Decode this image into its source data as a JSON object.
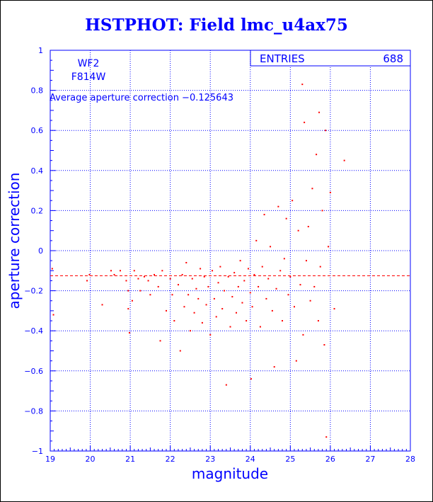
{
  "title": "HSTPHOT: Field lmc_u4ax75",
  "chart_data": {
    "type": "scatter",
    "title": "HSTPHOT: Field lmc_u4ax75",
    "xlabel": "magnitude",
    "ylabel": "aperture correction",
    "xlim": [
      19,
      28
    ],
    "ylim": [
      -1,
      1
    ],
    "xticks": [
      19,
      20,
      21,
      22,
      23,
      24,
      25,
      26,
      27,
      28
    ],
    "yticks": [
      -1,
      -0.8,
      -0.6,
      -0.4,
      -0.2,
      0,
      0.2,
      0.4,
      0.6,
      0.8,
      1
    ],
    "xtick_labels": [
      "19",
      "20",
      "21",
      "22",
      "23",
      "24",
      "25",
      "26",
      "27",
      "28"
    ],
    "ytick_labels": [
      "−1",
      "−0.8",
      "−0.6",
      "−0.4",
      "−0.2",
      "0",
      "0.2",
      "0.4",
      "0.6",
      "0.8",
      "1"
    ],
    "grid": true,
    "mean_line": -0.125643,
    "stats": {
      "label": "ENTRIES",
      "value": "688"
    },
    "annotations": {
      "camera": "WF2",
      "filter": "F814W",
      "average_text": "Average aperture correction −0.125643"
    },
    "colors": {
      "text": "#0000ff",
      "points": "#ff0000",
      "axes": "#0000ff",
      "mean_line": "#ff0000"
    },
    "series": [
      {
        "points": [
          [
            19.05,
            -0.09
          ],
          [
            19.08,
            -0.32
          ],
          [
            19.92,
            -0.15
          ],
          [
            19.98,
            -0.12
          ],
          [
            20.3,
            -0.27
          ],
          [
            20.52,
            -0.1
          ],
          [
            20.6,
            -0.12
          ],
          [
            20.75,
            -0.1
          ],
          [
            20.9,
            -0.15
          ],
          [
            20.95,
            -0.2
          ],
          [
            20.95,
            -0.29
          ],
          [
            20.98,
            -0.41
          ],
          [
            21.05,
            -0.25
          ],
          [
            21.1,
            -0.1
          ],
          [
            21.2,
            -0.14
          ],
          [
            21.25,
            -0.2
          ],
          [
            21.35,
            -0.13
          ],
          [
            21.45,
            -0.15
          ],
          [
            21.5,
            -0.22
          ],
          [
            21.6,
            -0.12
          ],
          [
            21.7,
            -0.18
          ],
          [
            21.75,
            -0.45
          ],
          [
            21.8,
            -0.1
          ],
          [
            21.9,
            -0.3
          ],
          [
            22.0,
            -0.14
          ],
          [
            22.05,
            -0.22
          ],
          [
            22.1,
            -0.35
          ],
          [
            22.2,
            -0.17
          ],
          [
            22.25,
            -0.5
          ],
          [
            22.3,
            -0.12
          ],
          [
            22.35,
            -0.28
          ],
          [
            22.4,
            -0.06
          ],
          [
            22.45,
            -0.22
          ],
          [
            22.5,
            -0.4
          ],
          [
            22.55,
            -0.14
          ],
          [
            22.6,
            -0.31
          ],
          [
            22.65,
            -0.19
          ],
          [
            22.7,
            -0.24
          ],
          [
            22.75,
            -0.09
          ],
          [
            22.8,
            -0.36
          ],
          [
            22.85,
            -0.13
          ],
          [
            22.9,
            -0.27
          ],
          [
            22.95,
            -0.18
          ],
          [
            23.0,
            -0.42
          ],
          [
            23.05,
            -0.1
          ],
          [
            23.1,
            -0.24
          ],
          [
            23.15,
            -0.33
          ],
          [
            23.2,
            -0.16
          ],
          [
            23.25,
            -0.08
          ],
          [
            23.3,
            -0.29
          ],
          [
            23.35,
            -0.2
          ],
          [
            23.4,
            -0.67
          ],
          [
            23.45,
            -0.13
          ],
          [
            23.5,
            -0.38
          ],
          [
            23.55,
            -0.23
          ],
          [
            23.6,
            -0.11
          ],
          [
            23.65,
            -0.31
          ],
          [
            23.7,
            -0.18
          ],
          [
            23.75,
            -0.05
          ],
          [
            23.8,
            -0.26
          ],
          [
            23.85,
            -0.15
          ],
          [
            23.9,
            -0.35
          ],
          [
            23.95,
            -0.09
          ],
          [
            24.0,
            -0.21
          ],
          [
            24.02,
            -0.64
          ],
          [
            24.05,
            -0.28
          ],
          [
            24.1,
            -0.12
          ],
          [
            24.15,
            0.05
          ],
          [
            24.2,
            -0.18
          ],
          [
            24.25,
            -0.38
          ],
          [
            24.3,
            -0.08
          ],
          [
            24.35,
            0.18
          ],
          [
            24.4,
            -0.24
          ],
          [
            24.45,
            -0.14
          ],
          [
            24.5,
            0.02
          ],
          [
            24.55,
            -0.3
          ],
          [
            24.6,
            -0.58
          ],
          [
            24.65,
            -0.19
          ],
          [
            24.7,
            0.22
          ],
          [
            24.75,
            -0.1
          ],
          [
            24.8,
            -0.35
          ],
          [
            24.85,
            -0.04
          ],
          [
            24.9,
            0.16
          ],
          [
            24.95,
            -0.22
          ],
          [
            25.0,
            -0.13
          ],
          [
            25.05,
            0.25
          ],
          [
            25.1,
            -0.28
          ],
          [
            25.15,
            -0.55
          ],
          [
            25.2,
            0.1
          ],
          [
            25.25,
            -0.17
          ],
          [
            25.3,
            0.83
          ],
          [
            25.32,
            -0.42
          ],
          [
            25.35,
            0.64
          ],
          [
            25.4,
            -0.05
          ],
          [
            25.45,
            0.12
          ],
          [
            25.5,
            -0.25
          ],
          [
            25.55,
            0.31
          ],
          [
            25.6,
            -0.18
          ],
          [
            25.65,
            0.48
          ],
          [
            25.7,
            -0.35
          ],
          [
            25.72,
            0.69
          ],
          [
            25.75,
            -0.08
          ],
          [
            25.8,
            0.2
          ],
          [
            25.85,
            -0.47
          ],
          [
            25.88,
            0.6
          ],
          [
            25.9,
            -0.93
          ],
          [
            25.95,
            0.02
          ],
          [
            26.0,
            0.29
          ],
          [
            26.1,
            -0.29
          ],
          [
            26.35,
            0.45
          ]
        ]
      }
    ]
  }
}
